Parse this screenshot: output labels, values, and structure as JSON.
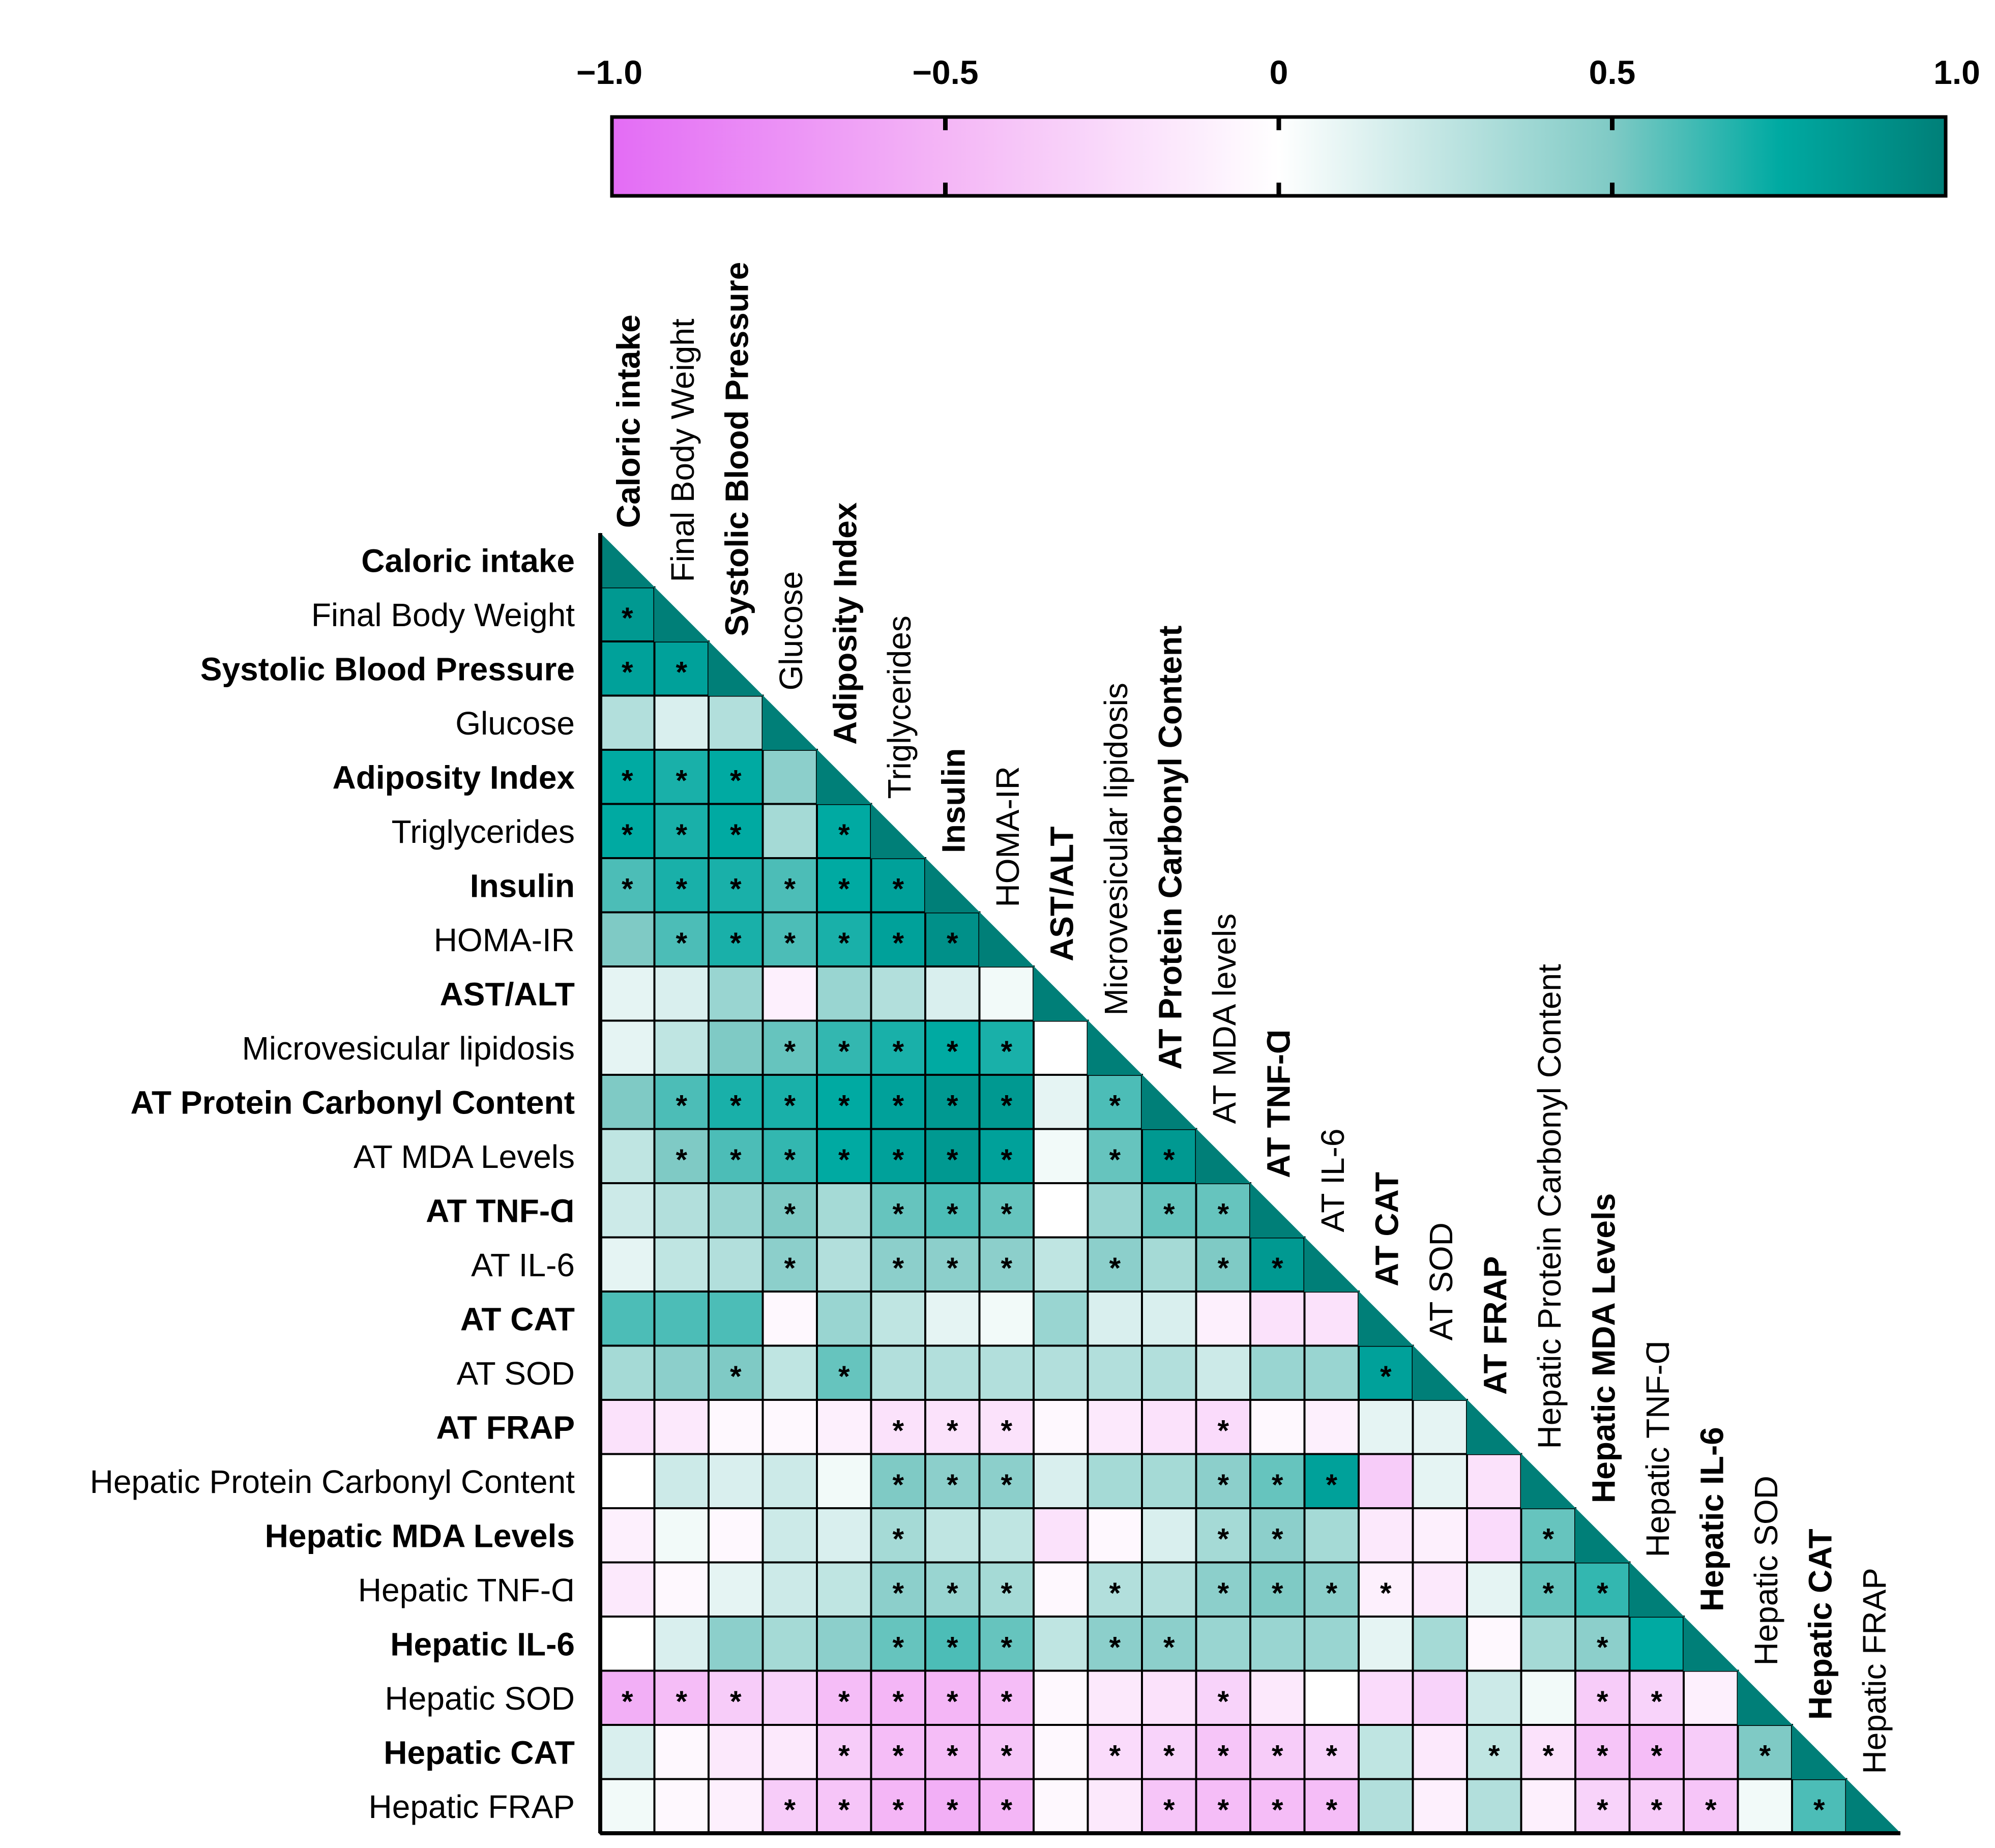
{
  "chart_data": {
    "type": "heatmap",
    "title": "",
    "variables": [
      "Caloric intake",
      "Final Body Weight",
      "Systolic Blood Pressure",
      "Glucose",
      "Adiposity Index",
      "Triglycerides",
      "Insulin",
      "HOMA-IR",
      "AST/ALT",
      "Microvesicular lipidosis",
      "AT Protein Carbonyl Content",
      "AT MDA Levels",
      "AT TNF-Ɑ",
      "AT IL-6",
      "AT CAT",
      "AT SOD",
      "AT FRAP",
      "Hepatic Protein Carbonyl Content",
      "Hepatic MDA Levels",
      "Hepatic TNF-Ɑ",
      "Hepatic IL-6",
      "Hepatic SOD",
      "Hepatic CAT",
      "Hepatic FRAP"
    ],
    "column_labels": [
      "Caloric intake",
      "Final Body Weight",
      "Systolic Blood Pressure",
      "Glucose",
      "Adiposity Index",
      "Triglycerides",
      "Insulin",
      "HOMA-IR",
      "AST/ALT",
      "Microvesicular lipidosis",
      "AT Protein Carbonyl Content",
      "AT MDA levels",
      "AT TNF-Ɑ",
      "AT IL-6",
      "AT CAT",
      "AT SOD",
      "AT FRAP",
      "Hepatic Protein Carbonyl Content",
      "Hepatic MDA Levels",
      "Hepatic TNF-Ɑ",
      "Hepatic IL-6",
      "Hepatic SOD",
      "Hepatic CAT",
      "Hepatic FRAP"
    ],
    "bold_labels": [
      true,
      false,
      true,
      false,
      true,
      false,
      true,
      false,
      true,
      false,
      true,
      false,
      true,
      false,
      true,
      false,
      true,
      false,
      true,
      false,
      true,
      false,
      true,
      false
    ],
    "values": [
      [],
      [
        0.85
      ],
      [
        0.8,
        0.8
      ],
      [
        0.3,
        0.15,
        0.3
      ],
      [
        0.75,
        0.7,
        0.75,
        0.45
      ],
      [
        0.75,
        0.7,
        0.75,
        0.35,
        0.75
      ],
      [
        0.6,
        0.7,
        0.7,
        0.6,
        0.75,
        0.8
      ],
      [
        0.5,
        0.6,
        0.7,
        0.6,
        0.7,
        0.8,
        0.9
      ],
      [
        0.1,
        0.15,
        0.4,
        -0.1,
        0.4,
        0.3,
        0.15,
        0.05
      ],
      [
        0.1,
        0.25,
        0.5,
        0.55,
        0.65,
        0.7,
        0.75,
        0.7,
        0.0
      ],
      [
        0.5,
        0.6,
        0.7,
        0.7,
        0.75,
        0.8,
        0.85,
        0.85,
        0.1,
        0.6
      ],
      [
        0.25,
        0.5,
        0.6,
        0.65,
        0.75,
        0.8,
        0.85,
        0.8,
        0.05,
        0.55,
        0.85
      ],
      [
        0.2,
        0.3,
        0.4,
        0.5,
        0.35,
        0.55,
        0.6,
        0.55,
        0.0,
        0.4,
        0.55,
        0.55
      ],
      [
        0.1,
        0.25,
        0.3,
        0.45,
        0.3,
        0.45,
        0.45,
        0.45,
        0.25,
        0.45,
        0.35,
        0.5,
        0.85
      ],
      [
        0.6,
        0.6,
        0.6,
        -0.05,
        0.4,
        0.25,
        0.1,
        0.05,
        0.4,
        0.15,
        0.15,
        -0.1,
        -0.2,
        -0.2
      ],
      [
        0.35,
        0.45,
        0.5,
        0.25,
        0.55,
        0.3,
        0.3,
        0.3,
        0.3,
        0.3,
        0.3,
        0.2,
        0.4,
        0.4,
        0.8
      ],
      [
        -0.2,
        -0.15,
        -0.05,
        -0.05,
        -0.1,
        -0.2,
        -0.2,
        -0.2,
        -0.05,
        -0.15,
        -0.2,
        -0.25,
        -0.05,
        -0.1,
        0.1,
        0.1
      ],
      [
        0.0,
        0.2,
        0.15,
        0.2,
        0.05,
        0.5,
        0.45,
        0.45,
        0.15,
        0.35,
        0.35,
        0.45,
        0.55,
        0.8,
        -0.35,
        0.1,
        -0.2
      ],
      [
        -0.1,
        0.05,
        -0.05,
        0.2,
        0.15,
        0.35,
        0.25,
        0.25,
        -0.2,
        -0.05,
        0.15,
        0.35,
        0.45,
        0.35,
        -0.15,
        -0.1,
        -0.25,
        0.55
      ],
      [
        -0.15,
        -0.05,
        0.1,
        0.2,
        0.25,
        0.45,
        0.4,
        0.35,
        -0.05,
        0.3,
        0.3,
        0.45,
        0.5,
        0.45,
        -0.1,
        -0.15,
        0.1,
        0.55,
        0.65
      ],
      [
        0.0,
        0.15,
        0.45,
        0.35,
        0.45,
        0.55,
        0.6,
        0.55,
        0.25,
        0.45,
        0.45,
        0.4,
        0.4,
        0.4,
        0.1,
        0.35,
        -0.05,
        0.35,
        0.45,
        0.75
      ],
      [
        -0.55,
        -0.45,
        -0.35,
        -0.3,
        -0.45,
        -0.5,
        -0.5,
        -0.45,
        -0.05,
        -0.15,
        -0.2,
        -0.3,
        -0.15,
        0.0,
        -0.25,
        -0.3,
        0.2,
        0.05,
        -0.35,
        -0.3,
        -0.1
      ],
      [
        0.15,
        -0.05,
        -0.15,
        -0.15,
        -0.35,
        -0.45,
        -0.45,
        -0.4,
        -0.05,
        -0.25,
        -0.3,
        -0.4,
        -0.35,
        -0.3,
        0.25,
        -0.15,
        0.25,
        -0.2,
        -0.4,
        -0.45,
        -0.35,
        0.5
      ],
      [
        0.05,
        -0.05,
        -0.1,
        -0.35,
        -0.4,
        -0.5,
        -0.55,
        -0.5,
        -0.05,
        -0.15,
        -0.4,
        -0.45,
        -0.45,
        -0.45,
        0.3,
        -0.1,
        0.3,
        -0.1,
        -0.3,
        -0.35,
        -0.4,
        0.05,
        0.6
      ]
    ],
    "significant": [
      [],
      [
        1
      ],
      [
        1,
        1
      ],
      [
        0,
        0,
        0
      ],
      [
        1,
        1,
        1,
        0
      ],
      [
        1,
        1,
        1,
        0,
        1
      ],
      [
        1,
        1,
        1,
        1,
        1,
        1
      ],
      [
        0,
        1,
        1,
        1,
        1,
        1,
        1
      ],
      [
        0,
        0,
        0,
        0,
        0,
        0,
        0,
        0
      ],
      [
        0,
        0,
        0,
        1,
        1,
        1,
        1,
        1,
        0
      ],
      [
        0,
        1,
        1,
        1,
        1,
        1,
        1,
        1,
        0,
        1
      ],
      [
        0,
        1,
        1,
        1,
        1,
        1,
        1,
        1,
        0,
        1,
        1
      ],
      [
        0,
        0,
        0,
        1,
        0,
        1,
        1,
        1,
        0,
        0,
        1,
        1
      ],
      [
        0,
        0,
        0,
        1,
        0,
        1,
        1,
        1,
        0,
        1,
        0,
        1,
        1
      ],
      [
        0,
        0,
        0,
        0,
        0,
        0,
        0,
        0,
        0,
        0,
        0,
        0,
        0,
        0
      ],
      [
        0,
        0,
        1,
        0,
        1,
        0,
        0,
        0,
        0,
        0,
        0,
        0,
        0,
        0,
        1
      ],
      [
        0,
        0,
        0,
        0,
        0,
        1,
        1,
        1,
        0,
        0,
        0,
        1,
        0,
        0,
        0,
        0
      ],
      [
        0,
        0,
        0,
        0,
        0,
        1,
        1,
        1,
        0,
        0,
        0,
        1,
        1,
        1,
        0,
        0,
        0
      ],
      [
        0,
        0,
        0,
        0,
        0,
        1,
        0,
        0,
        0,
        0,
        0,
        1,
        1,
        0,
        0,
        0,
        0,
        1
      ],
      [
        0,
        0,
        0,
        0,
        0,
        1,
        1,
        1,
        0,
        1,
        0,
        1,
        1,
        1,
        1,
        0,
        0,
        1,
        1
      ],
      [
        0,
        0,
        0,
        0,
        0,
        1,
        1,
        1,
        0,
        1,
        1,
        0,
        0,
        0,
        0,
        0,
        0,
        0,
        1,
        0
      ],
      [
        1,
        1,
        1,
        0,
        1,
        1,
        1,
        1,
        0,
        0,
        0,
        1,
        0,
        0,
        0,
        0,
        0,
        0,
        1,
        1,
        0
      ],
      [
        0,
        0,
        0,
        0,
        1,
        1,
        1,
        1,
        0,
        1,
        1,
        1,
        1,
        1,
        0,
        0,
        1,
        1,
        1,
        1,
        0,
        1
      ],
      [
        0,
        0,
        0,
        1,
        1,
        1,
        1,
        1,
        0,
        0,
        1,
        1,
        1,
        1,
        0,
        0,
        0,
        0,
        1,
        1,
        1,
        0,
        1
      ]
    ],
    "significance_marker": "*",
    "colorbar": {
      "range": [
        -1.0,
        1.0
      ],
      "ticks": [
        -1.0,
        -0.5,
        0,
        0.5,
        1.0
      ],
      "tick_labels": [
        "−1.0",
        "−0.5",
        "0",
        "0.5",
        "1.0"
      ],
      "stops": [
        {
          "value": -1.0,
          "color": "#e36cf5"
        },
        {
          "value": -0.5,
          "color": "#f4b6f6"
        },
        {
          "value": 0.0,
          "color": "#ffffff"
        },
        {
          "value": 0.5,
          "color": "#7fcac5"
        },
        {
          "value": 0.75,
          "color": "#00aaa2"
        },
        {
          "value": 1.0,
          "color": "#007f78"
        }
      ]
    }
  }
}
